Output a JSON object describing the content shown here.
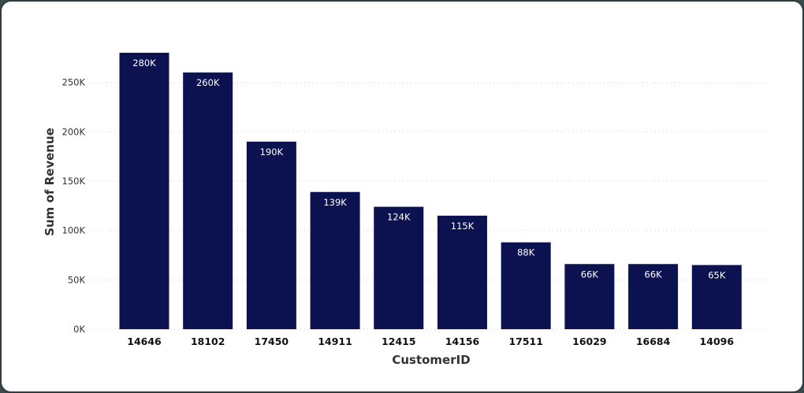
{
  "chart_data": {
    "type": "bar",
    "title": "",
    "xlabel": "CustomerID",
    "ylabel": "Sum of Revenue",
    "categories": [
      "14646",
      "18102",
      "17450",
      "14911",
      "12415",
      "14156",
      "17511",
      "16029",
      "16684",
      "14096"
    ],
    "values": [
      280000,
      260000,
      190000,
      139000,
      124000,
      115000,
      88000,
      66000,
      66000,
      65000
    ],
    "data_labels": [
      "280K",
      "260K",
      "190K",
      "139K",
      "124K",
      "115K",
      "88K",
      "66K",
      "66K",
      "65K"
    ],
    "y_ticks": [
      0,
      50000,
      100000,
      150000,
      200000,
      250000
    ],
    "y_tick_labels": [
      "0K",
      "50K",
      "100K",
      "150K",
      "200K",
      "250K"
    ],
    "ylim": [
      0,
      280000
    ],
    "grid": true,
    "legend": "none",
    "bar_color": "#0b124f",
    "grid_color": "#cfcfcf"
  }
}
